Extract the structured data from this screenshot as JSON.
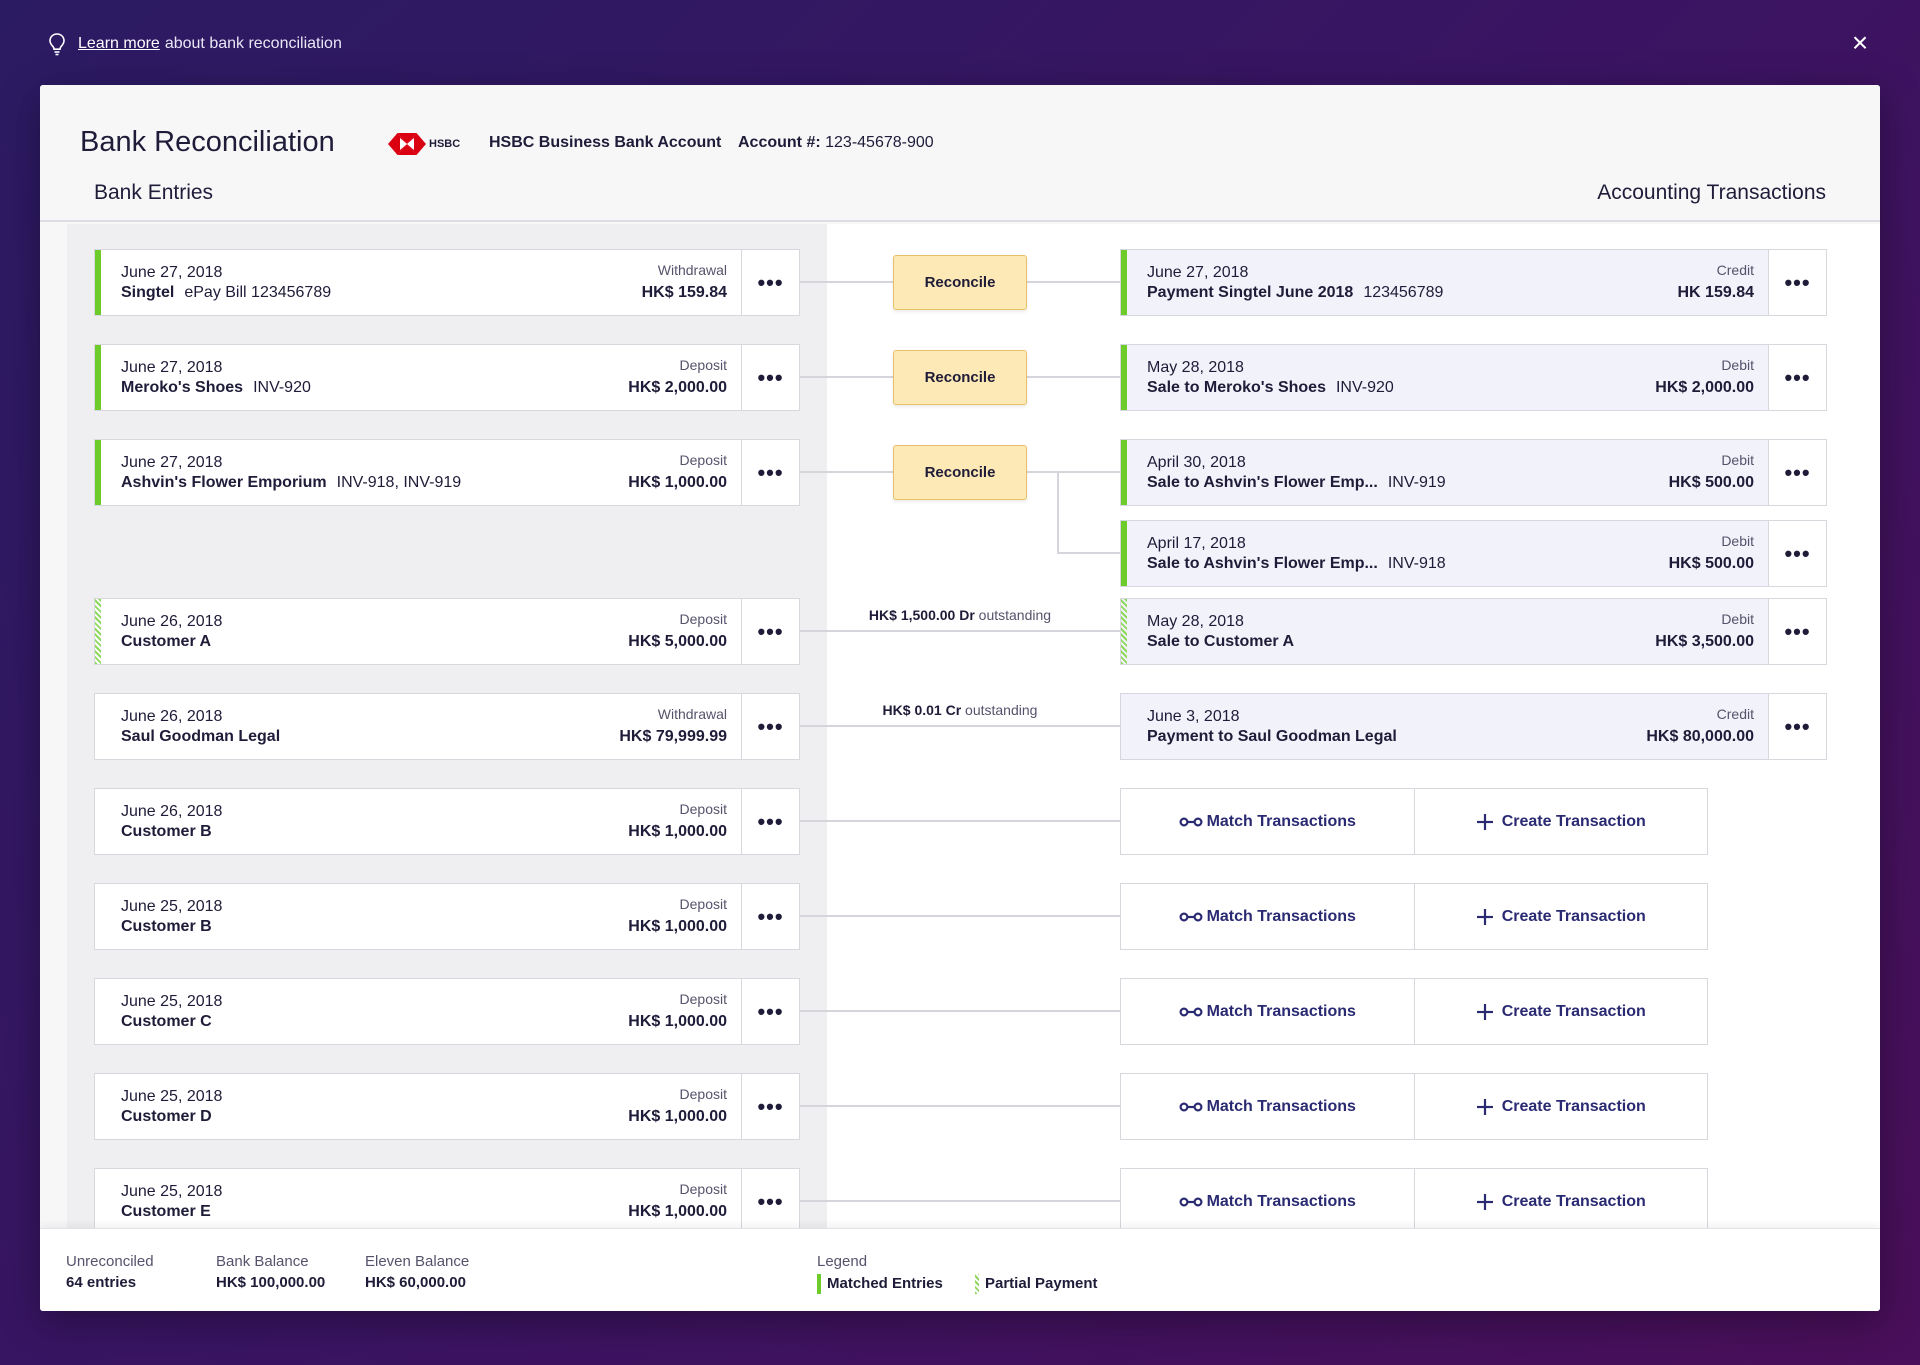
{
  "topbar": {
    "learn_link": "Learn more",
    "learn_rest": "about bank reconciliation",
    "close": "×"
  },
  "header": {
    "title": "Bank Reconciliation",
    "bank_logo_text": "HSBC",
    "bank_name": "HSBC Business Bank Account",
    "account_label": "Account #:",
    "account_number": "123-45678-900",
    "left_title": "Bank Entries",
    "right_title": "Accounting Transactions"
  },
  "bank_entries": [
    {
      "date": "June 27, 2018",
      "name": "Singtel",
      "ref": "ePay Bill 123456789",
      "kind": "Withdrawal",
      "amount": "HK$ 159.84",
      "status": "matched"
    },
    {
      "date": "June 27, 2018",
      "name": "Meroko's Shoes",
      "ref": "INV-920",
      "kind": "Deposit",
      "amount": "HK$ 2,000.00",
      "status": "matched"
    },
    {
      "date": "June 27, 2018",
      "name": "Ashvin's Flower Emporium",
      "ref": "INV-918, INV-919",
      "kind": "Deposit",
      "amount": "HK$ 1,000.00",
      "status": "matched"
    },
    {
      "date": "June 26, 2018",
      "name": "Customer A",
      "ref": "",
      "kind": "Deposit",
      "amount": "HK$ 5,000.00",
      "status": "partial"
    },
    {
      "date": "June 26, 2018",
      "name": "Saul Goodman Legal",
      "ref": "",
      "kind": "Withdrawal",
      "amount": "HK$ 79,999.99",
      "status": "none"
    },
    {
      "date": "June 26, 2018",
      "name": "Customer B",
      "ref": "",
      "kind": "Deposit",
      "amount": "HK$ 1,000.00",
      "status": "none"
    },
    {
      "date": "June 25, 2018",
      "name": "Customer B",
      "ref": "",
      "kind": "Deposit",
      "amount": "HK$ 1,000.00",
      "status": "none"
    },
    {
      "date": "June 25, 2018",
      "name": "Customer C",
      "ref": "",
      "kind": "Deposit",
      "amount": "HK$ 1,000.00",
      "status": "none"
    },
    {
      "date": "June 25, 2018",
      "name": "Customer D",
      "ref": "",
      "kind": "Deposit",
      "amount": "HK$ 1,000.00",
      "status": "none"
    },
    {
      "date": "June 25, 2018",
      "name": "Customer E",
      "ref": "",
      "kind": "Deposit",
      "amount": "HK$ 1,000.00",
      "status": "none"
    }
  ],
  "accounting_transactions": [
    {
      "date": "June 27, 2018",
      "name": "Payment Singtel June 2018",
      "ref": "123456789",
      "kind": "Credit",
      "amount": "HK 159.84",
      "status": "matched"
    },
    {
      "date": "May 28, 2018",
      "name": "Sale to Meroko's Shoes",
      "ref": "INV-920",
      "kind": "Debit",
      "amount": "HK$ 2,000.00",
      "status": "matched"
    },
    {
      "date": "April 30, 2018",
      "name": "Sale to Ashvin's Flower Emp...",
      "ref": "INV-919",
      "kind": "Debit",
      "amount": "HK$ 500.00",
      "status": "matched"
    },
    {
      "date": "April 17, 2018",
      "name": "Sale to Ashvin's Flower Emp...",
      "ref": "INV-918",
      "kind": "Debit",
      "amount": "HK$ 500.00",
      "status": "matched"
    },
    {
      "date": "May 28, 2018",
      "name": "Sale to Customer A",
      "ref": "",
      "kind": "Debit",
      "amount": "HK$ 3,500.00",
      "status": "partial"
    },
    {
      "date": "June 3, 2018",
      "name": "Payment to Saul Goodman Legal",
      "ref": "",
      "kind": "Credit",
      "amount": "HK$ 80,000.00",
      "status": "none"
    }
  ],
  "more_label": "•••",
  "reconcile_label": "Reconcile",
  "outstanding": [
    {
      "amount": "HK$ 1,500.00 Dr",
      "text": "outstanding"
    },
    {
      "amount": "HK$ 0.01 Cr",
      "text": "outstanding"
    }
  ],
  "actions": {
    "match": "Match Transactions",
    "create": "Create Transaction"
  },
  "footer": {
    "unreconciled_label": "Unreconciled",
    "unreconciled_value": "64 entries",
    "bank_balance_label": "Bank Balance",
    "bank_balance_value": "HK$ 100,000.00",
    "eleven_balance_label": "Eleven Balance",
    "eleven_balance_value": "HK$ 60,000.00",
    "legend_title": "Legend",
    "legend_matched": "Matched Entries",
    "legend_partial": "Partial Payment"
  },
  "colors": {
    "matched": "#6dcc2a",
    "reconcile_bg": "#fde9b5",
    "accent_text": "#2a2a73"
  }
}
